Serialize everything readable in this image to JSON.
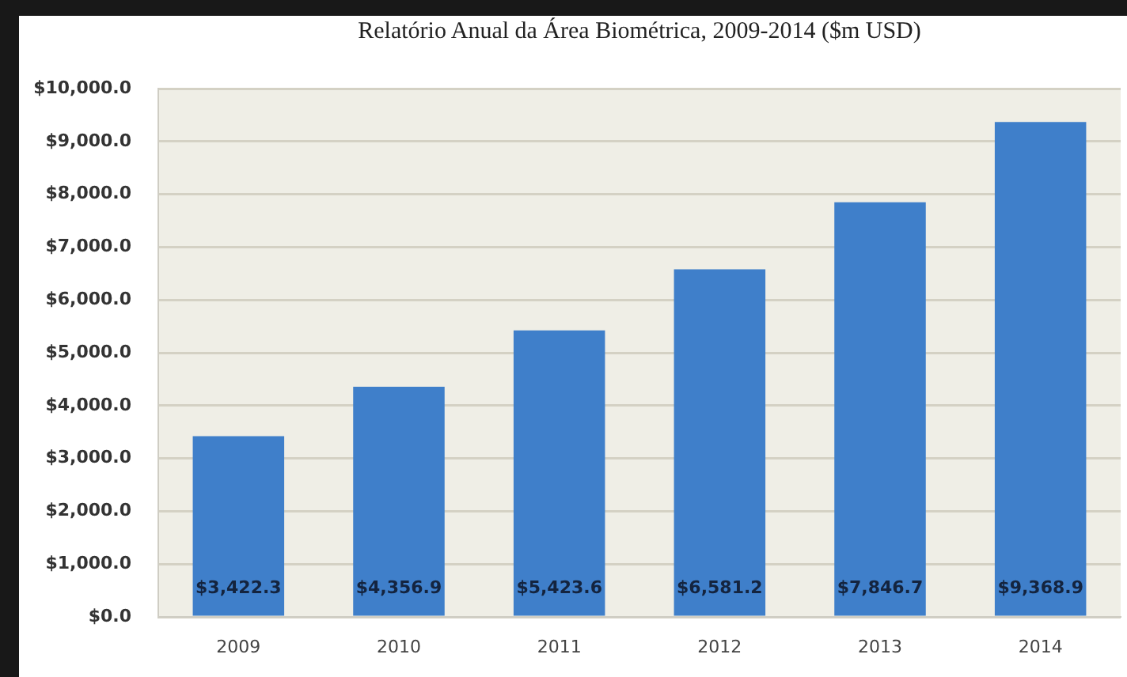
{
  "chart_data": {
    "type": "bar",
    "title": "Relatório Anual da Área Biométrica, 2009-2014 ($m USD)",
    "categories": [
      "2009",
      "2010",
      "2011",
      "2012",
      "2013",
      "2014"
    ],
    "values": [
      3422.3,
      4356.9,
      5423.6,
      6581.2,
      7846.7,
      9368.9
    ],
    "value_labels": [
      "$3,422.3",
      "$4,356.9",
      "$5,423.6",
      "$6,581.2",
      "$7,846.7",
      "$9,368.9"
    ],
    "color": "#3f7fca",
    "ylim": [
      0,
      10000
    ],
    "yticks": [
      {
        "value": 0,
        "label": "$0.0"
      },
      {
        "value": 1000,
        "label": "$1,000.0"
      },
      {
        "value": 2000,
        "label": "$2,000.0"
      },
      {
        "value": 3000,
        "label": "$3,000.0"
      },
      {
        "value": 4000,
        "label": "$4,000.0"
      },
      {
        "value": 5000,
        "label": "$5,000.0"
      },
      {
        "value": 6000,
        "label": "$6,000.0"
      },
      {
        "value": 7000,
        "label": "$7,000.0"
      },
      {
        "value": 8000,
        "label": "$8,000.0"
      },
      {
        "value": 9000,
        "label": "$9,000.0"
      },
      {
        "value": 10000,
        "label": "$10,000.0"
      }
    ],
    "grid": "y"
  }
}
